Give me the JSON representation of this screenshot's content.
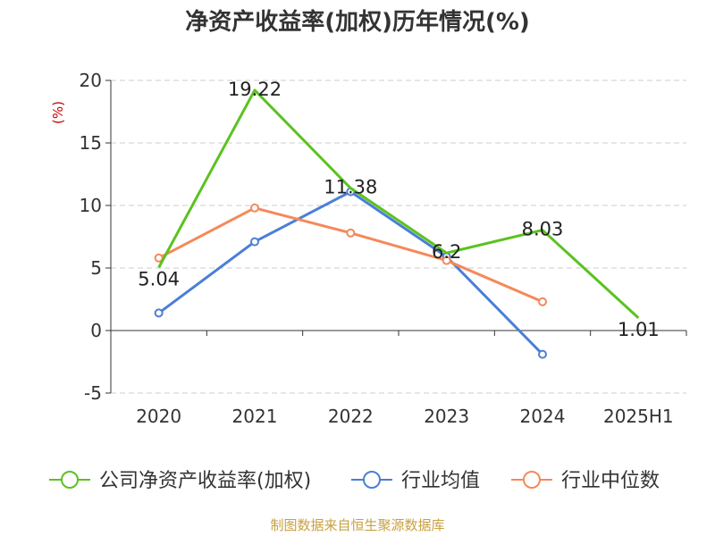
{
  "chart_data": {
    "type": "line",
    "title": "净资产收益率(加权)历年情况(%)",
    "ylabel": "(%)",
    "categories": [
      "2020",
      "2021",
      "2022",
      "2023",
      "2024",
      "2025H1"
    ],
    "ylim": [
      -5,
      20
    ],
    "yticks": [
      -5,
      0,
      5,
      10,
      15,
      20
    ],
    "grid": true,
    "legend_position": "bottom",
    "series": [
      {
        "name": "公司净资产收益率(加权)",
        "color": "#5bc21f",
        "values": [
          5.04,
          19.22,
          11.38,
          6.2,
          8.03,
          1.01
        ],
        "labels": [
          "5.04",
          "19.22",
          "11.38",
          "6.2",
          "8.03",
          "1.01"
        ],
        "markers": false
      },
      {
        "name": "行业均值",
        "color": "#4a7fd6",
        "values": [
          1.4,
          7.1,
          11.1,
          5.9,
          -1.9,
          null
        ],
        "markers": true
      },
      {
        "name": "行业中位数",
        "color": "#f5895a",
        "values": [
          5.8,
          9.8,
          7.8,
          5.6,
          2.3,
          null
        ],
        "markers": true
      }
    ]
  },
  "footer": {
    "source": "制图数据来自恒生聚源数据库"
  }
}
